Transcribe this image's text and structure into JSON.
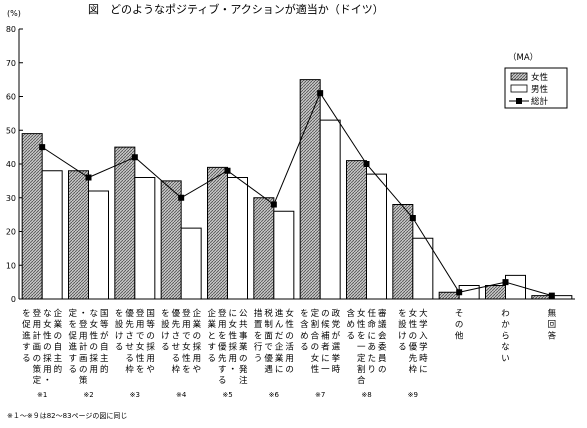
{
  "chart_data": {
    "type": "bar",
    "title": "図　どのようなポジティブ・アクションが適当か（ドイツ）",
    "ylabel": "(%)",
    "ylim": [
      0,
      80
    ],
    "yticks": [
      0,
      10,
      20,
      30,
      40,
      50,
      60,
      70,
      80
    ],
    "grid": false,
    "legend_position": "top-right",
    "legend_title": "（MA）",
    "categories": [
      {
        "label": [
          "企業の自主的",
          "な女性の採用・",
          "登用計画の策定",
          "を促進する"
        ],
        "note": "※1"
      },
      {
        "label": [
          "国等が自主的",
          "な女性の採用",
          "・登用計画の策",
          "定を促進する"
        ],
        "note": "※2"
      },
      {
        "label": [
          "国等の採用や",
          "登用で女性を",
          "優先させる枠",
          "を設ける"
        ],
        "note": "※3"
      },
      {
        "label": [
          "企業の採用や",
          "登用で女性を",
          "優先させる枠",
          "を設ける"
        ],
        "note": "※4"
      },
      {
        "label": [
          "公共事業の発注",
          "に女性採用・",
          "登用を優先する",
          "企業とする"
        ],
        "note": "※5"
      },
      {
        "label": [
          "女性の活用の",
          "進んだ企業に",
          "税制面で優遇",
          "措置を行う"
        ],
        "note": "※6"
      },
      {
        "label": [
          "政党が選挙時",
          "の候補者に一",
          "定割合の女性",
          "を含める"
        ],
        "note": "※7"
      },
      {
        "label": [
          "審議会委員の",
          "任命にあたり",
          "女性を一定割合",
          "含める"
        ],
        "note": "※8"
      },
      {
        "label": [
          "大学入学時に",
          "女性の優先枠",
          "を設ける"
        ],
        "note": "※9"
      },
      {
        "label": [
          "その他"
        ],
        "note": ""
      },
      {
        "label": [
          "わからない"
        ],
        "note": ""
      },
      {
        "label": [
          "無回答"
        ],
        "note": ""
      }
    ],
    "series": [
      {
        "name": "女性",
        "type": "bar",
        "pattern": "hatched",
        "values": [
          49,
          38,
          45,
          35,
          39,
          30,
          65,
          41,
          28,
          2,
          4,
          1
        ]
      },
      {
        "name": "男性",
        "type": "bar",
        "pattern": "white",
        "values": [
          38,
          32,
          36,
          21,
          36,
          26,
          53,
          37,
          18,
          4,
          7,
          1
        ]
      },
      {
        "name": "総計",
        "type": "line",
        "marker": "square",
        "values": [
          45,
          36,
          42,
          30,
          38,
          28,
          61,
          40,
          24,
          2,
          5,
          1
        ]
      }
    ],
    "footnote": "※１〜※９は82〜83ページの図に同じ"
  }
}
